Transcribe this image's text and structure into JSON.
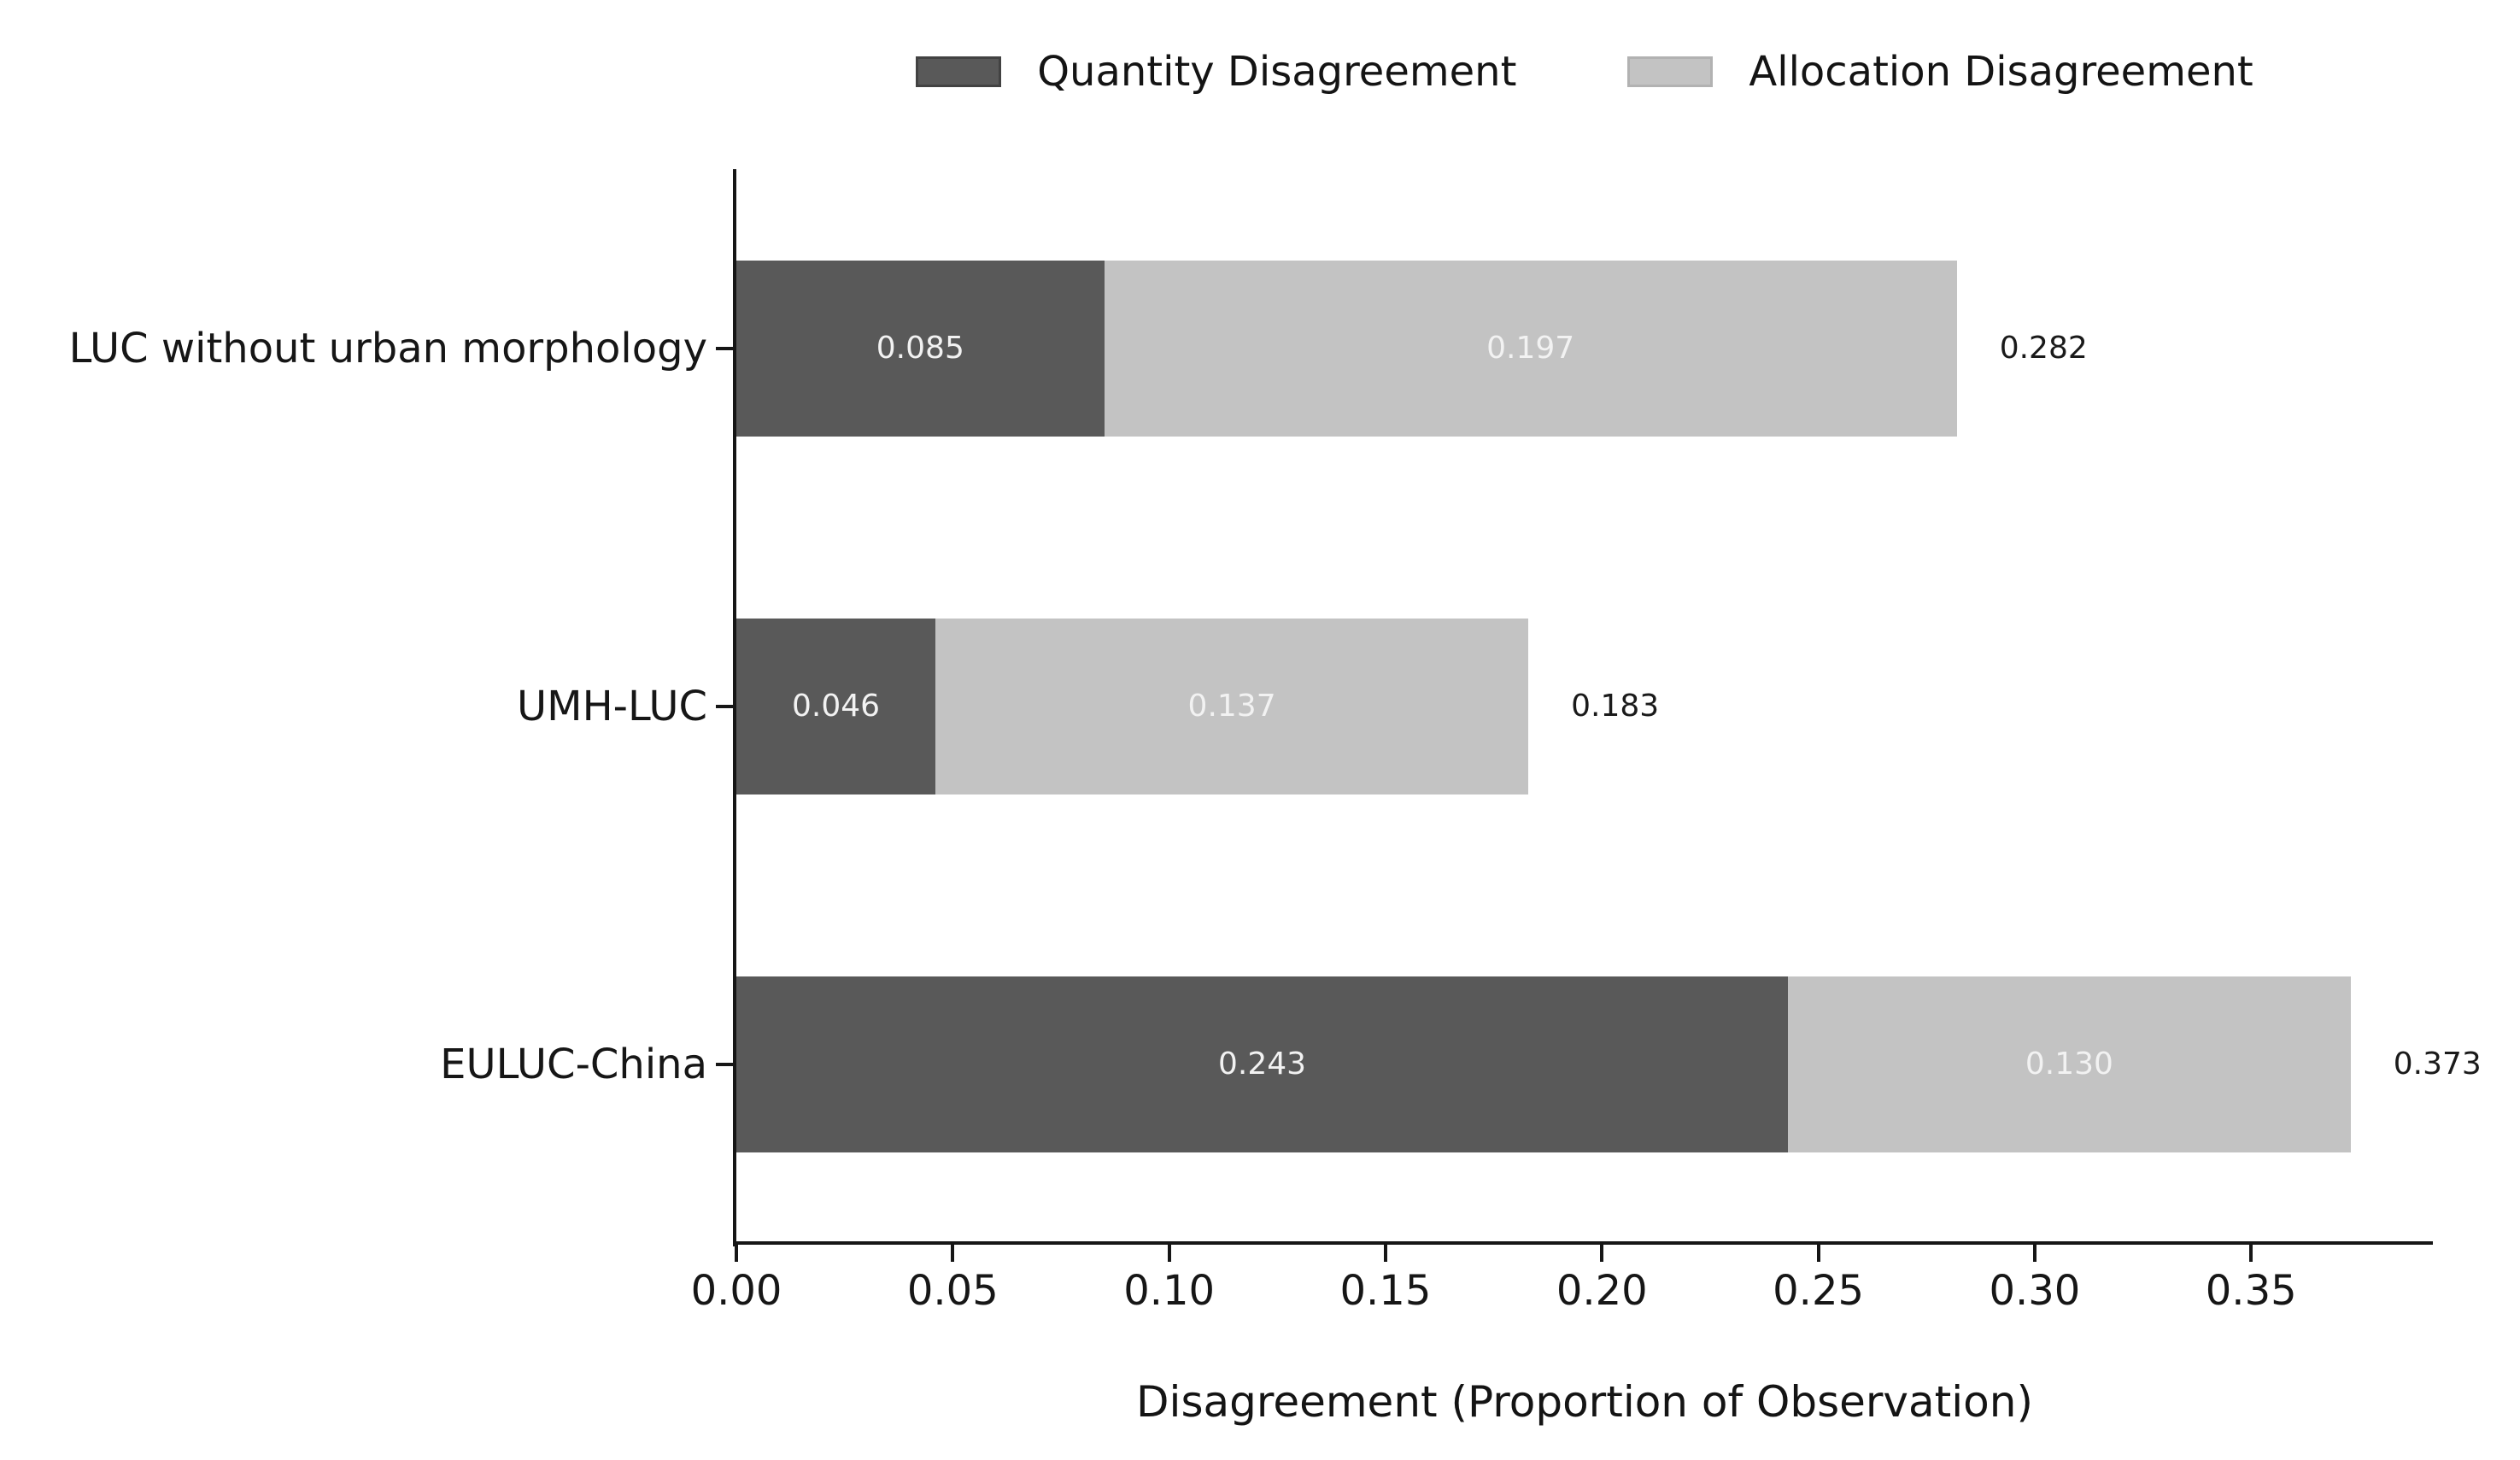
{
  "chart_data": {
    "type": "bar",
    "orientation": "horizontal",
    "stacked": true,
    "title": "",
    "xlabel": "Disagreement (Proportion of Observation)",
    "ylabel": "",
    "categories": [
      "LUC without urban morphology",
      "UMH-LUC",
      "EULUC-China"
    ],
    "series": [
      {
        "name": "Quantity Disagreement",
        "color": "#595959",
        "values": [
          0.085,
          0.046,
          0.243
        ]
      },
      {
        "name": "Allocation Disagreement",
        "color": "#c3c3c3",
        "values": [
          0.197,
          0.137,
          0.13
        ]
      }
    ],
    "segment_labels": [
      [
        "0.085",
        "0.197"
      ],
      [
        "0.046",
        "0.137"
      ],
      [
        "0.243",
        "0.130"
      ]
    ],
    "totals": [
      0.282,
      0.183,
      0.373
    ],
    "total_labels": [
      "0.282",
      "0.183",
      "0.373"
    ],
    "x_tick_labels": [
      "0.00",
      "0.05",
      "0.10",
      "0.15",
      "0.20",
      "0.25",
      "0.30",
      "0.35"
    ],
    "x_tick_values": [
      0.0,
      0.05,
      0.1,
      0.15,
      0.2,
      0.25,
      0.3,
      0.35
    ],
    "xlim": [
      0,
      0.392
    ],
    "grid": false,
    "legend_position": "top center"
  },
  "colors": {
    "quantity_series": "#595959",
    "allocation_series": "#c3c3c3",
    "segment_label_text": "#f2f2f2",
    "axis_text": "#161616",
    "background": "#ffffff"
  }
}
